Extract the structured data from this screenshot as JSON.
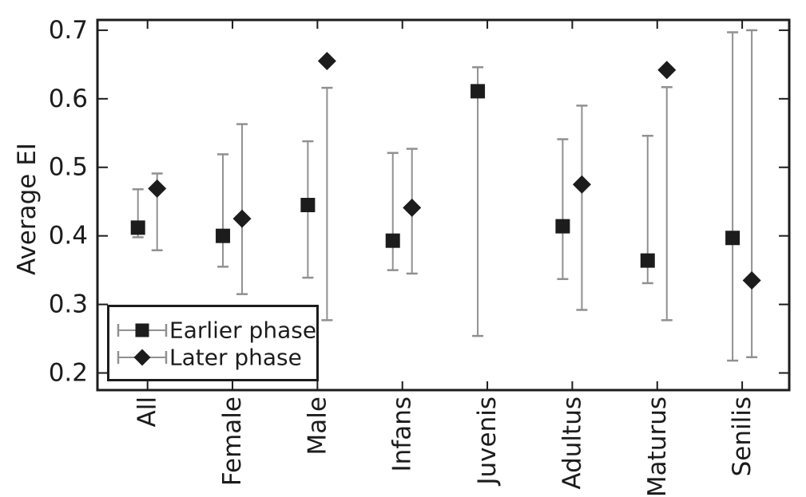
{
  "chart_data": {
    "type": "scatter",
    "subtype": "errorbar-points",
    "title": "",
    "xlabel": "",
    "ylabel": "Average EI",
    "categories": [
      "All",
      "Female",
      "Male",
      "Infans",
      "Juvenis",
      "Adultus",
      "Maturus",
      "Senilis"
    ],
    "yticks": [
      0.2,
      0.3,
      0.4,
      0.5,
      0.6,
      0.7
    ],
    "ytick_labels": [
      "0.2",
      "0.3",
      "0.4",
      "0.5",
      "0.6",
      "0.7"
    ],
    "ylim": [
      0.175,
      0.715
    ],
    "grid": false,
    "legend_position": "bottom-left",
    "series": [
      {
        "name": "Earlier phase",
        "marker": "square",
        "values": [
          0.412,
          0.4,
          0.445,
          0.393,
          0.611,
          0.414,
          0.364,
          0.397
        ],
        "err_low": [
          0.398,
          0.355,
          0.339,
          0.35,
          0.254,
          0.337,
          0.331,
          0.218
        ],
        "err_high": [
          0.468,
          0.519,
          0.538,
          0.521,
          0.646,
          0.541,
          0.546,
          0.697
        ]
      },
      {
        "name": "Later phase",
        "marker": "diamond",
        "values": [
          0.469,
          0.425,
          0.655,
          0.441,
          null,
          0.475,
          0.642,
          0.335
        ],
        "err_low": [
          0.379,
          0.315,
          0.277,
          0.345,
          null,
          0.292,
          0.277,
          0.223
        ],
        "err_high": [
          0.491,
          0.563,
          0.616,
          0.527,
          null,
          0.59,
          0.617,
          0.7
        ]
      }
    ],
    "colors": {
      "marker": "#1c1c1c",
      "error_bar": "#909090",
      "axis": "#1c1c1c",
      "text": "#1c1c1c",
      "background": "#ffffff"
    }
  }
}
